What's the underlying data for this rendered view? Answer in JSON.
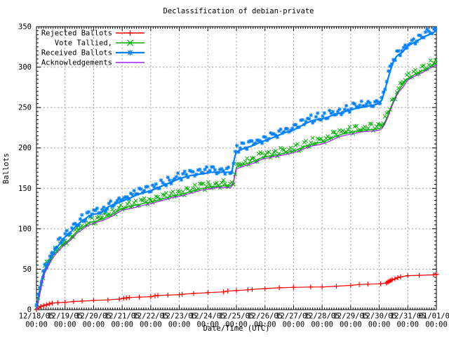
{
  "window": {
    "background": "#ffffff"
  },
  "chart_data": {
    "type": "line",
    "title": "Declassification of debian-private",
    "xlabel": "Date/Time (UTC)",
    "ylabel": "Ballots",
    "ylim": [
      0,
      350
    ],
    "yticks": [
      0,
      50,
      100,
      150,
      200,
      250,
      300,
      350
    ],
    "grid": "dashed-gray-major",
    "legend_position": "top-left-inside",
    "x_unit": "days since 12/18/05 00:00 UTC",
    "xlim_days": [
      0,
      14
    ],
    "xticks": [
      {
        "date": "12/18/05",
        "time": "00:00"
      },
      {
        "date": "12/19/05",
        "time": "00:00"
      },
      {
        "date": "12/20/05",
        "time": "00:00"
      },
      {
        "date": "12/21/05",
        "time": "00:00"
      },
      {
        "date": "12/22/05",
        "time": "00:00"
      },
      {
        "date": "12/23/05",
        "time": "00:00"
      },
      {
        "date": "12/24/05",
        "time": "00:00"
      },
      {
        "date": "12/25/05",
        "time": "00:00"
      },
      {
        "date": "12/26/05",
        "time": "00:00"
      },
      {
        "date": "12/27/05",
        "time": "00:00"
      },
      {
        "date": "12/28/05",
        "time": "00:00"
      },
      {
        "date": "12/29/05",
        "time": "00:00"
      },
      {
        "date": "12/30/05",
        "time": "00:00"
      },
      {
        "date": "12/31/05",
        "time": "00:00"
      },
      {
        "date": "01/01/06",
        "time": "00:00"
      }
    ],
    "axis_color": "#000000",
    "grid_color": "#9e9e9e",
    "series": [
      {
        "name": "Rejected Ballots",
        "color": "#ff0000",
        "marker": "plus",
        "band": false,
        "line_width": 1.2,
        "points": [
          [
            0,
            0
          ],
          [
            0.08,
            2
          ],
          [
            0.15,
            4
          ],
          [
            0.25,
            5
          ],
          [
            0.35,
            6
          ],
          [
            0.45,
            7
          ],
          [
            0.55,
            8
          ],
          [
            0.75,
            8.5
          ],
          [
            1.0,
            9
          ],
          [
            1.3,
            10
          ],
          [
            1.6,
            10.5
          ],
          [
            2.0,
            11.5
          ],
          [
            2.5,
            12
          ],
          [
            2.9,
            13
          ],
          [
            3.05,
            14
          ],
          [
            3.15,
            14.5
          ],
          [
            3.25,
            15
          ],
          [
            3.6,
            15.5
          ],
          [
            4.0,
            16
          ],
          [
            4.15,
            17
          ],
          [
            4.25,
            17.5
          ],
          [
            4.6,
            18
          ],
          [
            5.0,
            18.5
          ],
          [
            5.1,
            19
          ],
          [
            5.5,
            20
          ],
          [
            6.0,
            21
          ],
          [
            6.55,
            22
          ],
          [
            6.7,
            23
          ],
          [
            7.0,
            23.5
          ],
          [
            7.4,
            24.5
          ],
          [
            7.55,
            25
          ],
          [
            8.0,
            26
          ],
          [
            8.5,
            27
          ],
          [
            9.0,
            27.5
          ],
          [
            9.6,
            28
          ],
          [
            10.0,
            28
          ],
          [
            10.5,
            29
          ],
          [
            11.0,
            30
          ],
          [
            11.3,
            31
          ],
          [
            11.6,
            31.5
          ],
          [
            12.05,
            32
          ],
          [
            12.25,
            33
          ],
          [
            12.3,
            34
          ],
          [
            12.35,
            35
          ],
          [
            12.4,
            36
          ],
          [
            12.45,
            37
          ],
          [
            12.55,
            38
          ],
          [
            12.65,
            39.5
          ],
          [
            12.75,
            40.5
          ],
          [
            13.0,
            42
          ],
          [
            13.4,
            42.5
          ],
          [
            13.9,
            43
          ],
          [
            14.0,
            43.5
          ]
        ]
      },
      {
        "name": "Vote Tallied,",
        "color": "#00b000",
        "marker": "cross",
        "band": true,
        "line_width": 1.5,
        "points": [
          [
            0,
            0
          ],
          [
            0.05,
            8
          ],
          [
            0.1,
            18
          ],
          [
            0.15,
            28
          ],
          [
            0.2,
            36
          ],
          [
            0.3,
            48
          ],
          [
            0.4,
            55
          ],
          [
            0.5,
            62
          ],
          [
            0.6,
            68
          ],
          [
            0.7,
            72
          ],
          [
            0.8,
            76
          ],
          [
            0.9,
            80
          ],
          [
            1.0,
            83
          ],
          [
            1.1,
            85
          ],
          [
            1.2,
            88
          ],
          [
            1.3,
            92
          ],
          [
            1.4,
            96
          ],
          [
            1.5,
            99
          ],
          [
            1.6,
            101
          ],
          [
            1.7,
            104
          ],
          [
            1.8,
            106
          ],
          [
            1.9,
            108
          ],
          [
            2.0,
            109
          ],
          [
            2.15,
            110
          ],
          [
            2.3,
            112
          ],
          [
            2.5,
            115
          ],
          [
            2.7,
            119
          ],
          [
            2.85,
            122
          ],
          [
            3.0,
            125
          ],
          [
            3.2,
            127
          ],
          [
            3.4,
            129
          ],
          [
            3.6,
            130
          ],
          [
            3.8,
            132
          ],
          [
            4.0,
            133
          ],
          [
            4.2,
            135
          ],
          [
            4.4,
            137
          ],
          [
            4.6,
            139
          ],
          [
            4.8,
            141
          ],
          [
            5.0,
            142
          ],
          [
            5.2,
            144
          ],
          [
            5.4,
            146
          ],
          [
            5.6,
            148
          ],
          [
            5.8,
            150
          ],
          [
            6.0,
            151
          ],
          [
            6.2,
            152
          ],
          [
            6.5,
            153
          ],
          [
            6.8,
            153
          ],
          [
            6.88,
            154
          ],
          [
            6.92,
            162
          ],
          [
            6.96,
            170
          ],
          [
            7.0,
            176
          ],
          [
            7.1,
            178
          ],
          [
            7.3,
            180
          ],
          [
            7.5,
            182
          ],
          [
            7.7,
            185
          ],
          [
            7.9,
            188
          ],
          [
            8.0,
            189
          ],
          [
            8.15,
            190
          ],
          [
            8.3,
            191
          ],
          [
            8.5,
            192
          ],
          [
            8.7,
            194
          ],
          [
            9.0,
            196
          ],
          [
            9.2,
            199
          ],
          [
            9.4,
            202
          ],
          [
            9.6,
            204
          ],
          [
            9.8,
            206
          ],
          [
            10.0,
            207
          ],
          [
            10.2,
            210
          ],
          [
            10.4,
            213
          ],
          [
            10.6,
            216
          ],
          [
            10.8,
            218
          ],
          [
            11.0,
            219
          ],
          [
            11.2,
            221
          ],
          [
            11.5,
            222
          ],
          [
            11.8,
            223
          ],
          [
            12.0,
            224
          ],
          [
            12.1,
            226
          ],
          [
            12.2,
            232
          ],
          [
            12.3,
            240
          ],
          [
            12.4,
            250
          ],
          [
            12.5,
            258
          ],
          [
            12.6,
            266
          ],
          [
            12.7,
            272
          ],
          [
            12.8,
            277
          ],
          [
            12.9,
            282
          ],
          [
            13.0,
            286
          ],
          [
            13.1,
            288
          ],
          [
            13.2,
            290
          ],
          [
            13.4,
            294
          ],
          [
            13.6,
            297
          ],
          [
            13.8,
            301
          ],
          [
            13.95,
            304
          ],
          [
            14.0,
            305
          ]
        ]
      },
      {
        "name": "Received Ballots",
        "color": "#0080ff",
        "marker": "star",
        "band": true,
        "line_width": 2.2,
        "points": [
          [
            0,
            0
          ],
          [
            0.05,
            10
          ],
          [
            0.1,
            22
          ],
          [
            0.15,
            32
          ],
          [
            0.2,
            40
          ],
          [
            0.3,
            50
          ],
          [
            0.4,
            58
          ],
          [
            0.5,
            65
          ],
          [
            0.6,
            71
          ],
          [
            0.7,
            76
          ],
          [
            0.8,
            81
          ],
          [
            0.9,
            86
          ],
          [
            1.0,
            90
          ],
          [
            1.1,
            93
          ],
          [
            1.2,
            96
          ],
          [
            1.3,
            100
          ],
          [
            1.4,
            104
          ],
          [
            1.5,
            107
          ],
          [
            1.6,
            110
          ],
          [
            1.7,
            112
          ],
          [
            1.8,
            115
          ],
          [
            1.9,
            117
          ],
          [
            2.0,
            118
          ],
          [
            2.2,
            119
          ],
          [
            2.35,
            122
          ],
          [
            2.5,
            127
          ],
          [
            2.7,
            130
          ],
          [
            2.85,
            132
          ],
          [
            3.0,
            134
          ],
          [
            3.2,
            137
          ],
          [
            3.4,
            140
          ],
          [
            3.6,
            143
          ],
          [
            3.8,
            145
          ],
          [
            4.0,
            147
          ],
          [
            4.2,
            150
          ],
          [
            4.4,
            153
          ],
          [
            4.6,
            156
          ],
          [
            4.8,
            159
          ],
          [
            5.0,
            162
          ],
          [
            5.2,
            164
          ],
          [
            5.4,
            166
          ],
          [
            5.6,
            167
          ],
          [
            5.8,
            168
          ],
          [
            6.0,
            169
          ],
          [
            6.1,
            170
          ],
          [
            6.8,
            170
          ],
          [
            6.85,
            172
          ],
          [
            6.9,
            182
          ],
          [
            6.95,
            190
          ],
          [
            7.0,
            195
          ],
          [
            7.1,
            197
          ],
          [
            7.3,
            200
          ],
          [
            7.5,
            202
          ],
          [
            7.7,
            205
          ],
          [
            7.9,
            208
          ],
          [
            8.0,
            209
          ],
          [
            8.15,
            211
          ],
          [
            8.3,
            213
          ],
          [
            8.5,
            216
          ],
          [
            8.7,
            219
          ],
          [
            8.9,
            221
          ],
          [
            9.0,
            222
          ],
          [
            9.2,
            226
          ],
          [
            9.4,
            230
          ],
          [
            9.6,
            233
          ],
          [
            9.8,
            235
          ],
          [
            10.0,
            236
          ],
          [
            10.2,
            238
          ],
          [
            10.4,
            241
          ],
          [
            10.6,
            243
          ],
          [
            10.8,
            245
          ],
          [
            11.0,
            247
          ],
          [
            11.2,
            249
          ],
          [
            11.5,
            251
          ],
          [
            11.8,
            253
          ],
          [
            12.0,
            255
          ],
          [
            12.1,
            260
          ],
          [
            12.2,
            272
          ],
          [
            12.3,
            285
          ],
          [
            12.4,
            297
          ],
          [
            12.5,
            307
          ],
          [
            12.6,
            313
          ],
          [
            12.7,
            316
          ],
          [
            12.8,
            318
          ],
          [
            12.9,
            322
          ],
          [
            13.0,
            327
          ],
          [
            13.2,
            330
          ],
          [
            13.4,
            334
          ],
          [
            13.6,
            338
          ],
          [
            13.8,
            341
          ],
          [
            13.95,
            344
          ],
          [
            14.0,
            345
          ]
        ]
      },
      {
        "name": "Acknowledgements",
        "color": "#a020f0",
        "marker": "none",
        "band": false,
        "line_width": 1.2,
        "points": [
          [
            0,
            0
          ],
          [
            0.1,
            16
          ],
          [
            0.2,
            34
          ],
          [
            0.3,
            46
          ],
          [
            0.5,
            60
          ],
          [
            0.7,
            70
          ],
          [
            1.0,
            81
          ],
          [
            1.2,
            86
          ],
          [
            1.4,
            94
          ],
          [
            1.6,
            99
          ],
          [
            1.8,
            104
          ],
          [
            2.0,
            107
          ],
          [
            2.3,
            110
          ],
          [
            2.5,
            113
          ],
          [
            2.7,
            117
          ],
          [
            3.0,
            123
          ],
          [
            3.3,
            125
          ],
          [
            3.6,
            128
          ],
          [
            4.0,
            131
          ],
          [
            4.4,
            135
          ],
          [
            4.8,
            139
          ],
          [
            5.0,
            140
          ],
          [
            5.4,
            144
          ],
          [
            5.8,
            148
          ],
          [
            6.0,
            149
          ],
          [
            6.3,
            151
          ],
          [
            6.8,
            151
          ],
          [
            6.9,
            158
          ],
          [
            6.96,
            168
          ],
          [
            7.0,
            174
          ],
          [
            7.3,
            178
          ],
          [
            7.6,
            181
          ],
          [
            7.9,
            186
          ],
          [
            8.0,
            187
          ],
          [
            8.3,
            189
          ],
          [
            8.6,
            191
          ],
          [
            9.0,
            194
          ],
          [
            9.3,
            198
          ],
          [
            9.6,
            202
          ],
          [
            10.0,
            205
          ],
          [
            10.3,
            209
          ],
          [
            10.6,
            214
          ],
          [
            11.0,
            217
          ],
          [
            11.4,
            220
          ],
          [
            11.8,
            221
          ],
          [
            12.0,
            222
          ],
          [
            12.1,
            224
          ],
          [
            12.2,
            230
          ],
          [
            12.3,
            238
          ],
          [
            12.4,
            248
          ],
          [
            12.5,
            256
          ],
          [
            12.6,
            264
          ],
          [
            12.7,
            270
          ],
          [
            12.85,
            276
          ],
          [
            13.0,
            284
          ],
          [
            13.2,
            288
          ],
          [
            13.5,
            293
          ],
          [
            13.8,
            299
          ],
          [
            14.0,
            303
          ]
        ]
      }
    ]
  }
}
